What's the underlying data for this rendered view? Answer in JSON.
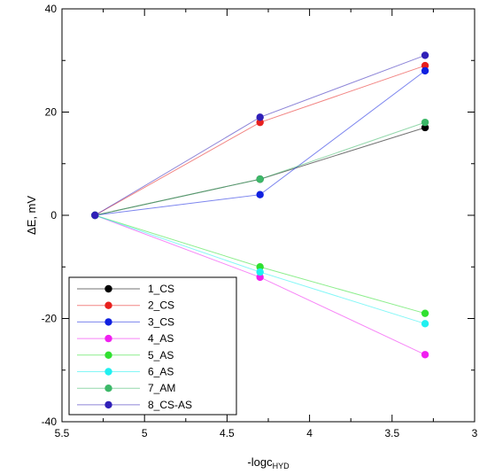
{
  "chart_data": {
    "type": "line",
    "xlabel": "-logc",
    "xlabel_sub": "HYD",
    "ylabel": "ΔE, mV",
    "xlim": [
      5.5,
      3
    ],
    "ylim": [
      -40,
      40
    ],
    "x_reversed": true,
    "x_ticks": [
      5.5,
      5,
      4.5,
      4,
      3.5,
      3
    ],
    "x_tick_labels": [
      "5.5",
      "5",
      "4.5",
      "4",
      "3.5",
      "3"
    ],
    "y_ticks": [
      -40,
      -20,
      0,
      20,
      40
    ],
    "y_tick_labels": [
      "-40",
      "-20",
      "0",
      "20",
      "40"
    ],
    "grid": false,
    "legend_position": "bottom-left",
    "x": [
      5.3,
      4.3,
      3.3
    ],
    "series": [
      {
        "name": "1_CS",
        "values": [
          0,
          7,
          17
        ],
        "color": "#000000"
      },
      {
        "name": "2_CS",
        "values": [
          0,
          18,
          29
        ],
        "color": "#e8201e"
      },
      {
        "name": "3_CS",
        "values": [
          0,
          4,
          28
        ],
        "color": "#1020e0"
      },
      {
        "name": "4_AS",
        "values": [
          0,
          -12,
          -27
        ],
        "color": "#f020f0"
      },
      {
        "name": "5_AS",
        "values": [
          0,
          -10,
          -19
        ],
        "color": "#30e030"
      },
      {
        "name": "6_AS",
        "values": [
          0,
          -11,
          -21
        ],
        "color": "#20f0f0"
      },
      {
        "name": "7_AM",
        "values": [
          0,
          7,
          18
        ],
        "color": "#3cb868"
      },
      {
        "name": "8_CS-AS",
        "values": [
          0,
          19,
          31
        ],
        "color": "#3020b8"
      }
    ]
  }
}
